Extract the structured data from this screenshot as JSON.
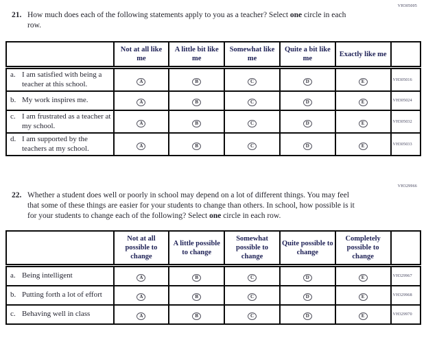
{
  "shared": {
    "option_letters": [
      "A",
      "B",
      "C",
      "D",
      "E"
    ]
  },
  "q21": {
    "number": "21.",
    "code": "VH305005",
    "text_prefix": "How much does each of the following statements apply to you as a teacher? Select ",
    "bold_word": "one",
    "text_suffix": " circle in each row.",
    "table": {
      "column_headers": [
        "Not at all like me",
        "A little bit like me",
        "Somewhat like me",
        "Quite a bit like me",
        "Exactly like me"
      ],
      "rows": [
        {
          "letter": "a.",
          "label": "I am satisfied with being a teacher at this school.",
          "code": "VH305016"
        },
        {
          "letter": "b.",
          "label": "My work inspires me.",
          "code": "VH305024"
        },
        {
          "letter": "c.",
          "label": "I am frustrated as a teacher at my school.",
          "code": "VH305032"
        },
        {
          "letter": "d.",
          "label": "I am supported by the teachers at my school.",
          "code": "VH305033"
        }
      ]
    }
  },
  "q22": {
    "number": "22.",
    "code": "VH329966",
    "text_prefix": "Whether a student does well or poorly in school may depend on a lot of different things. You may feel that some of these things are easier for your students to change than others. In school, how possible is it for your students to change each of the following? Select ",
    "bold_word": "one",
    "text_suffix": " circle in each row.",
    "table": {
      "column_headers": [
        "Not at all possible to change",
        "A little possible to change",
        "Somewhat possible to change",
        "Quite possible to change",
        "Completely possible to change"
      ],
      "rows": [
        {
          "letter": "a.",
          "label": "Being intelligent",
          "code": "VH329967"
        },
        {
          "letter": "b.",
          "label": "Putting forth a lot of effort",
          "code": "VH329968"
        },
        {
          "letter": "c.",
          "label": "Behaving well in class",
          "code": "VH329970"
        }
      ]
    }
  }
}
